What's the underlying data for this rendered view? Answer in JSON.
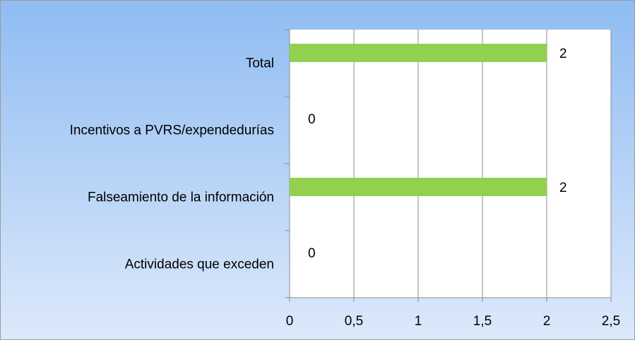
{
  "chart_data": {
    "type": "barh",
    "categories": [
      "Total",
      "Incentivos a PVRS/expendedurías",
      "Falseamiento de la información",
      "Actividades que exceden"
    ],
    "values": [
      2,
      0,
      2,
      0
    ],
    "color": "#92d050",
    "xlim": [
      0,
      2.5
    ],
    "xticks": [
      0,
      {
        "value": 0.5,
        "label": "0,5"
      },
      1,
      {
        "value": 1.5,
        "label": "1,5"
      },
      2,
      {
        "value": 2.5,
        "label": "2,5"
      }
    ],
    "grid": true
  }
}
